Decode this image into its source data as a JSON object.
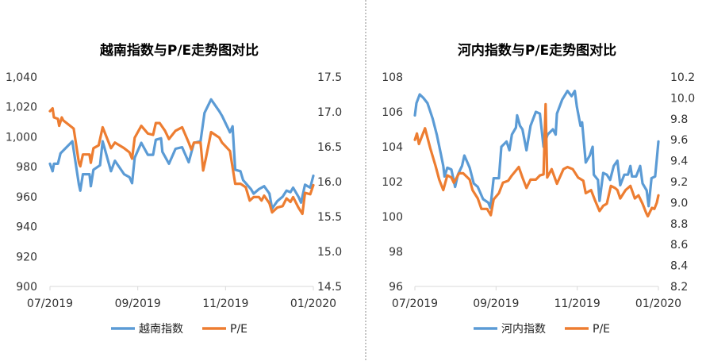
{
  "colors": {
    "index": "#5B9BD5",
    "pe": "#ED7D31",
    "axis": "#D9D9D9",
    "divider": "#888888"
  },
  "chart_data": [
    {
      "type": "line",
      "title": "越南指数与P/E走势图对比",
      "x_unit": "months since 07/2019",
      "xlim": [
        0,
        6
      ],
      "x_ticks": [
        {
          "v": 0,
          "label": "07/2019"
        },
        {
          "v": 2,
          "label": "09/2019"
        },
        {
          "v": 4,
          "label": "11/2019"
        },
        {
          "v": 6,
          "label": "01/2020"
        }
      ],
      "ylim_left": [
        900,
        1040
      ],
      "y_ticks_left": [
        "900",
        "920",
        "940",
        "960",
        "980",
        "1,000",
        "1,020",
        "1,040"
      ],
      "ylim_right": [
        14.5,
        17.5
      ],
      "y_ticks_right": [
        "14.5",
        "15.0",
        "15.5",
        "16.0",
        "16.5",
        "17.0",
        "17.5"
      ],
      "legend_position": "bottom",
      "series": [
        {
          "name": "越南指数",
          "axis": "left",
          "color_key": "index",
          "points": [
            [
              0,
              982
            ],
            [
              0.06,
              977
            ],
            [
              0.09,
              982
            ],
            [
              0.18,
              982
            ],
            [
              0.24,
              989
            ],
            [
              0.51,
              997
            ],
            [
              0.66,
              968
            ],
            [
              0.69,
              964
            ],
            [
              0.75,
              975
            ],
            [
              0.9,
              975
            ],
            [
              0.93,
              967
            ],
            [
              0.99,
              978
            ],
            [
              1.14,
              981
            ],
            [
              1.2,
              997
            ],
            [
              1.39,
              977
            ],
            [
              1.48,
              984
            ],
            [
              1.69,
              975
            ],
            [
              1.81,
              973
            ],
            [
              1.87,
              969
            ],
            [
              1.93,
              986
            ],
            [
              2.08,
              996
            ],
            [
              2.23,
              988
            ],
            [
              2.35,
              988
            ],
            [
              2.41,
              998
            ],
            [
              2.53,
              999
            ],
            [
              2.56,
              990
            ],
            [
              2.71,
              982
            ],
            [
              2.86,
              992
            ],
            [
              3.01,
              993
            ],
            [
              3.16,
              983
            ],
            [
              3.28,
              996
            ],
            [
              3.43,
              997
            ],
            [
              3.52,
              1016
            ],
            [
              3.67,
              1025
            ],
            [
              3.86,
              1017
            ],
            [
              3.92,
              1014
            ],
            [
              4.1,
              1003
            ],
            [
              4.16,
              1007
            ],
            [
              4.22,
              978
            ],
            [
              4.34,
              977
            ],
            [
              4.4,
              971
            ],
            [
              4.58,
              965
            ],
            [
              4.64,
              962
            ],
            [
              4.76,
              965
            ],
            [
              4.88,
              967
            ],
            [
              5.0,
              962
            ],
            [
              5.06,
              952
            ],
            [
              5.18,
              957
            ],
            [
              5.3,
              960
            ],
            [
              5.39,
              964
            ],
            [
              5.48,
              963
            ],
            [
              5.54,
              966
            ],
            [
              5.66,
              960
            ],
            [
              5.72,
              956
            ],
            [
              5.81,
              968
            ],
            [
              5.93,
              966
            ],
            [
              6.0,
              974
            ]
          ]
        },
        {
          "name": "P/E",
          "axis": "right",
          "color_key": "pe",
          "points": [
            [
              0,
              17.01
            ],
            [
              0.06,
              17.05
            ],
            [
              0.09,
              16.92
            ],
            [
              0.18,
              16.9
            ],
            [
              0.21,
              16.8
            ],
            [
              0.27,
              16.92
            ],
            [
              0.3,
              16.88
            ],
            [
              0.54,
              16.76
            ],
            [
              0.66,
              16.27
            ],
            [
              0.69,
              16.22
            ],
            [
              0.75,
              16.39
            ],
            [
              0.9,
              16.39
            ],
            [
              0.93,
              16.27
            ],
            [
              0.99,
              16.48
            ],
            [
              1.11,
              16.52
            ],
            [
              1.2,
              16.78
            ],
            [
              1.39,
              16.48
            ],
            [
              1.48,
              16.56
            ],
            [
              1.69,
              16.48
            ],
            [
              1.81,
              16.42
            ],
            [
              1.87,
              16.33
            ],
            [
              1.93,
              16.63
            ],
            [
              2.08,
              16.8
            ],
            [
              2.23,
              16.69
            ],
            [
              2.35,
              16.67
            ],
            [
              2.41,
              16.84
            ],
            [
              2.5,
              16.84
            ],
            [
              2.62,
              16.73
            ],
            [
              2.71,
              16.61
            ],
            [
              2.86,
              16.73
            ],
            [
              3.01,
              16.78
            ],
            [
              3.16,
              16.56
            ],
            [
              3.22,
              16.46
            ],
            [
              3.28,
              16.56
            ],
            [
              3.43,
              16.56
            ],
            [
              3.49,
              16.16
            ],
            [
              3.55,
              16.33
            ],
            [
              3.67,
              16.71
            ],
            [
              3.86,
              16.63
            ],
            [
              3.92,
              16.56
            ],
            [
              4.1,
              16.44
            ],
            [
              4.22,
              15.97
            ],
            [
              4.34,
              15.97
            ],
            [
              4.46,
              15.92
            ],
            [
              4.55,
              15.73
            ],
            [
              4.64,
              15.78
            ],
            [
              4.76,
              15.78
            ],
            [
              4.82,
              15.73
            ],
            [
              4.88,
              15.8
            ],
            [
              5.0,
              15.69
            ],
            [
              5.06,
              15.56
            ],
            [
              5.18,
              15.63
            ],
            [
              5.3,
              15.65
            ],
            [
              5.39,
              15.76
            ],
            [
              5.48,
              15.71
            ],
            [
              5.54,
              15.78
            ],
            [
              5.66,
              15.63
            ],
            [
              5.75,
              15.54
            ],
            [
              5.81,
              15.84
            ],
            [
              5.93,
              15.82
            ],
            [
              6.0,
              15.95
            ]
          ]
        }
      ]
    },
    {
      "type": "line",
      "title": "河内指数与P/E走势图对比",
      "x_unit": "months since 07/2019",
      "xlim": [
        0,
        6
      ],
      "x_ticks": [
        {
          "v": 0,
          "label": "07/2019"
        },
        {
          "v": 2,
          "label": "09/2019"
        },
        {
          "v": 4,
          "label": "11/2019"
        },
        {
          "v": 6,
          "label": "01/2020"
        }
      ],
      "ylim_left": [
        96,
        108
      ],
      "y_ticks_left": [
        "96",
        "98",
        "100",
        "102",
        "104",
        "106",
        "108"
      ],
      "ylim_right": [
        8.2,
        10.2
      ],
      "y_ticks_right": [
        "8.2",
        "8.4",
        "8.6",
        "8.8",
        "9.0",
        "9.2",
        "9.4",
        "9.6",
        "9.8",
        "10.0",
        "10.2"
      ],
      "legend_position": "bottom",
      "series": [
        {
          "name": "河内指数",
          "axis": "left",
          "color_key": "index",
          "points": [
            [
              0,
              105.8
            ],
            [
              0.04,
              106.5
            ],
            [
              0.12,
              107.0
            ],
            [
              0.21,
              106.8
            ],
            [
              0.31,
              106.5
            ],
            [
              0.44,
              105.6
            ],
            [
              0.54,
              104.7
            ],
            [
              0.64,
              103.6
            ],
            [
              0.7,
              102.9
            ],
            [
              0.73,
              102.3
            ],
            [
              0.8,
              102.8
            ],
            [
              0.9,
              102.7
            ],
            [
              0.99,
              101.7
            ],
            [
              1.06,
              102.4
            ],
            [
              1.16,
              102.9
            ],
            [
              1.22,
              103.5
            ],
            [
              1.35,
              102.8
            ],
            [
              1.45,
              101.9
            ],
            [
              1.55,
              101.7
            ],
            [
              1.68,
              101.0
            ],
            [
              1.81,
              100.8
            ],
            [
              1.86,
              100.5
            ],
            [
              1.94,
              102.2
            ],
            [
              2.07,
              102.2
            ],
            [
              2.13,
              104.0
            ],
            [
              2.26,
              104.3
            ],
            [
              2.33,
              103.8
            ],
            [
              2.39,
              104.7
            ],
            [
              2.49,
              105.1
            ],
            [
              2.52,
              105.8
            ],
            [
              2.59,
              105.2
            ],
            [
              2.65,
              105.0
            ],
            [
              2.75,
              103.8
            ],
            [
              2.85,
              105.2
            ],
            [
              2.98,
              106.0
            ],
            [
              3.08,
              105.9
            ],
            [
              3.17,
              104.0
            ],
            [
              3.27,
              104.7
            ],
            [
              3.4,
              105.0
            ],
            [
              3.47,
              104.7
            ],
            [
              3.5,
              105.9
            ],
            [
              3.63,
              106.7
            ],
            [
              3.76,
              107.2
            ],
            [
              3.86,
              106.9
            ],
            [
              3.94,
              107.2
            ],
            [
              3.99,
              106.3
            ],
            [
              4.08,
              105.2
            ],
            [
              4.12,
              105.4
            ],
            [
              4.21,
              103.1
            ],
            [
              4.31,
              103.5
            ],
            [
              4.38,
              104.0
            ],
            [
              4.41,
              102.4
            ],
            [
              4.51,
              102.1
            ],
            [
              4.55,
              100.9
            ],
            [
              4.64,
              102.5
            ],
            [
              4.73,
              102.4
            ],
            [
              4.81,
              102.1
            ],
            [
              4.9,
              102.9
            ],
            [
              4.99,
              103.2
            ],
            [
              5.06,
              101.8
            ],
            [
              5.16,
              102.4
            ],
            [
              5.25,
              102.4
            ],
            [
              5.31,
              102.9
            ],
            [
              5.35,
              102.3
            ],
            [
              5.45,
              102.3
            ],
            [
              5.55,
              102.9
            ],
            [
              5.61,
              101.9
            ],
            [
              5.71,
              101.5
            ],
            [
              5.76,
              100.6
            ],
            [
              5.83,
              102.2
            ],
            [
              5.92,
              102.3
            ],
            [
              5.96,
              103.3
            ],
            [
              6.0,
              104.3
            ]
          ]
        },
        {
          "name": "P/E",
          "axis": "right",
          "color_key": "pe",
          "points": [
            [
              0,
              9.6
            ],
            [
              0.05,
              9.66
            ],
            [
              0.1,
              9.56
            ],
            [
              0.25,
              9.71
            ],
            [
              0.38,
              9.52
            ],
            [
              0.51,
              9.35
            ],
            [
              0.6,
              9.22
            ],
            [
              0.7,
              9.12
            ],
            [
              0.8,
              9.26
            ],
            [
              0.9,
              9.24
            ],
            [
              0.96,
              9.19
            ],
            [
              1.09,
              9.28
            ],
            [
              1.19,
              9.28
            ],
            [
              1.35,
              9.22
            ],
            [
              1.42,
              9.12
            ],
            [
              1.55,
              9.04
            ],
            [
              1.64,
              8.94
            ],
            [
              1.78,
              8.94
            ],
            [
              1.87,
              8.88
            ],
            [
              1.94,
              9.03
            ],
            [
              2.07,
              9.09
            ],
            [
              2.17,
              9.19
            ],
            [
              2.3,
              9.21
            ],
            [
              2.39,
              9.26
            ],
            [
              2.56,
              9.34
            ],
            [
              2.65,
              9.24
            ],
            [
              2.75,
              9.14
            ],
            [
              2.85,
              9.22
            ],
            [
              2.98,
              9.22
            ],
            [
              3.08,
              9.26
            ],
            [
              3.17,
              9.27
            ],
            [
              3.22,
              9.94
            ],
            [
              3.26,
              9.24
            ],
            [
              3.37,
              9.32
            ],
            [
              3.5,
              9.18
            ],
            [
              3.66,
              9.32
            ],
            [
              3.76,
              9.34
            ],
            [
              3.89,
              9.32
            ],
            [
              4.02,
              9.24
            ],
            [
              4.15,
              9.21
            ],
            [
              4.21,
              9.09
            ],
            [
              4.34,
              9.12
            ],
            [
              4.44,
              9.02
            ],
            [
              4.55,
              8.92
            ],
            [
              4.64,
              8.97
            ],
            [
              4.73,
              8.99
            ],
            [
              4.83,
              9.16
            ],
            [
              4.93,
              9.14
            ],
            [
              4.99,
              9.12
            ],
            [
              5.06,
              9.04
            ],
            [
              5.19,
              9.12
            ],
            [
              5.31,
              9.16
            ],
            [
              5.42,
              9.04
            ],
            [
              5.51,
              9.07
            ],
            [
              5.61,
              8.99
            ],
            [
              5.7,
              8.9
            ],
            [
              5.74,
              8.87
            ],
            [
              5.84,
              8.95
            ],
            [
              5.9,
              8.94
            ],
            [
              5.96,
              9.0
            ],
            [
              6.0,
              9.07
            ]
          ]
        }
      ]
    }
  ]
}
